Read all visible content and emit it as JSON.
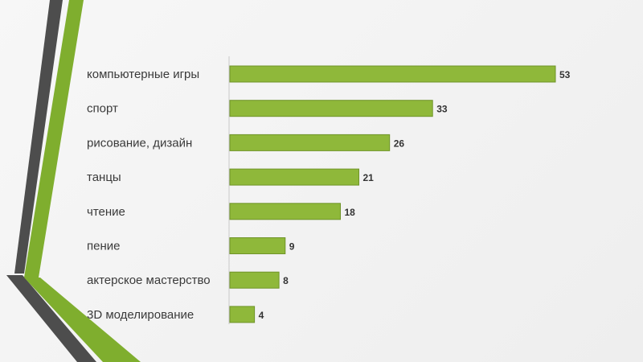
{
  "colors": {
    "bar": "#8fb83a",
    "bar_edge": "#6f9428",
    "deco_dark": "#4a4a4a",
    "deco_green": "#7fae2e",
    "axis": "#c8c8c8"
  },
  "chart_data": {
    "type": "bar",
    "orientation": "horizontal",
    "categories": [
      "компьютерные игры",
      "спорт",
      "рисование, дизайн",
      "танцы",
      "чтение",
      "пение",
      "актерское мастерство",
      "3D моделирование"
    ],
    "values": [
      53,
      33,
      26,
      21,
      18,
      9,
      8,
      4
    ],
    "xlim": [
      0,
      53
    ],
    "grid": false,
    "legend": "none",
    "data_labels": true
  }
}
